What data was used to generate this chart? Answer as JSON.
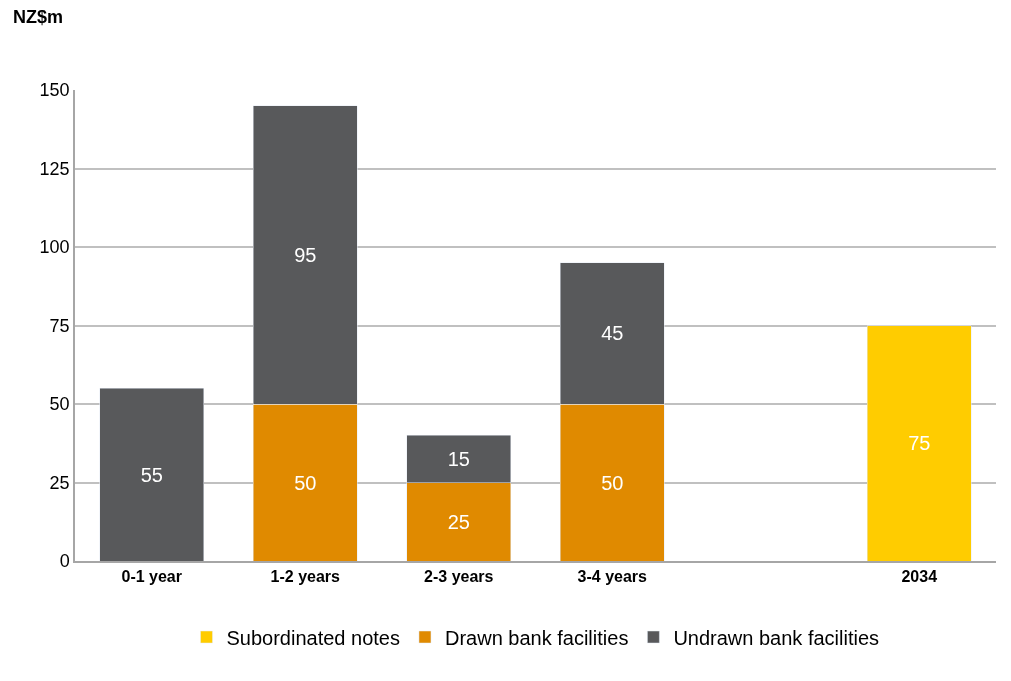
{
  "chart_data": {
    "type": "bar",
    "ylabel": "NZ$m",
    "categories": [
      "0-1 year",
      "1-2 years",
      "2-3 years",
      "3-4 years",
      null,
      "2034"
    ],
    "series": [
      {
        "name": "Subordinated notes",
        "color": "#ffcc00",
        "values": [
          null,
          null,
          null,
          null,
          null,
          75
        ]
      },
      {
        "name": "Drawn bank facilities",
        "color": "#e08a00",
        "values": [
          null,
          50,
          25,
          50,
          null,
          null
        ]
      },
      {
        "name": "Undrawn bank facilities",
        "color": "#58595b",
        "values": [
          55,
          95,
          15,
          45,
          null,
          null
        ]
      }
    ],
    "stacked": true,
    "data_labels": true,
    "ylim": [
      0,
      150
    ],
    "yticks": [
      0,
      25,
      50,
      75,
      100,
      125,
      150
    ],
    "grid": "y",
    "legend": "bottom"
  }
}
